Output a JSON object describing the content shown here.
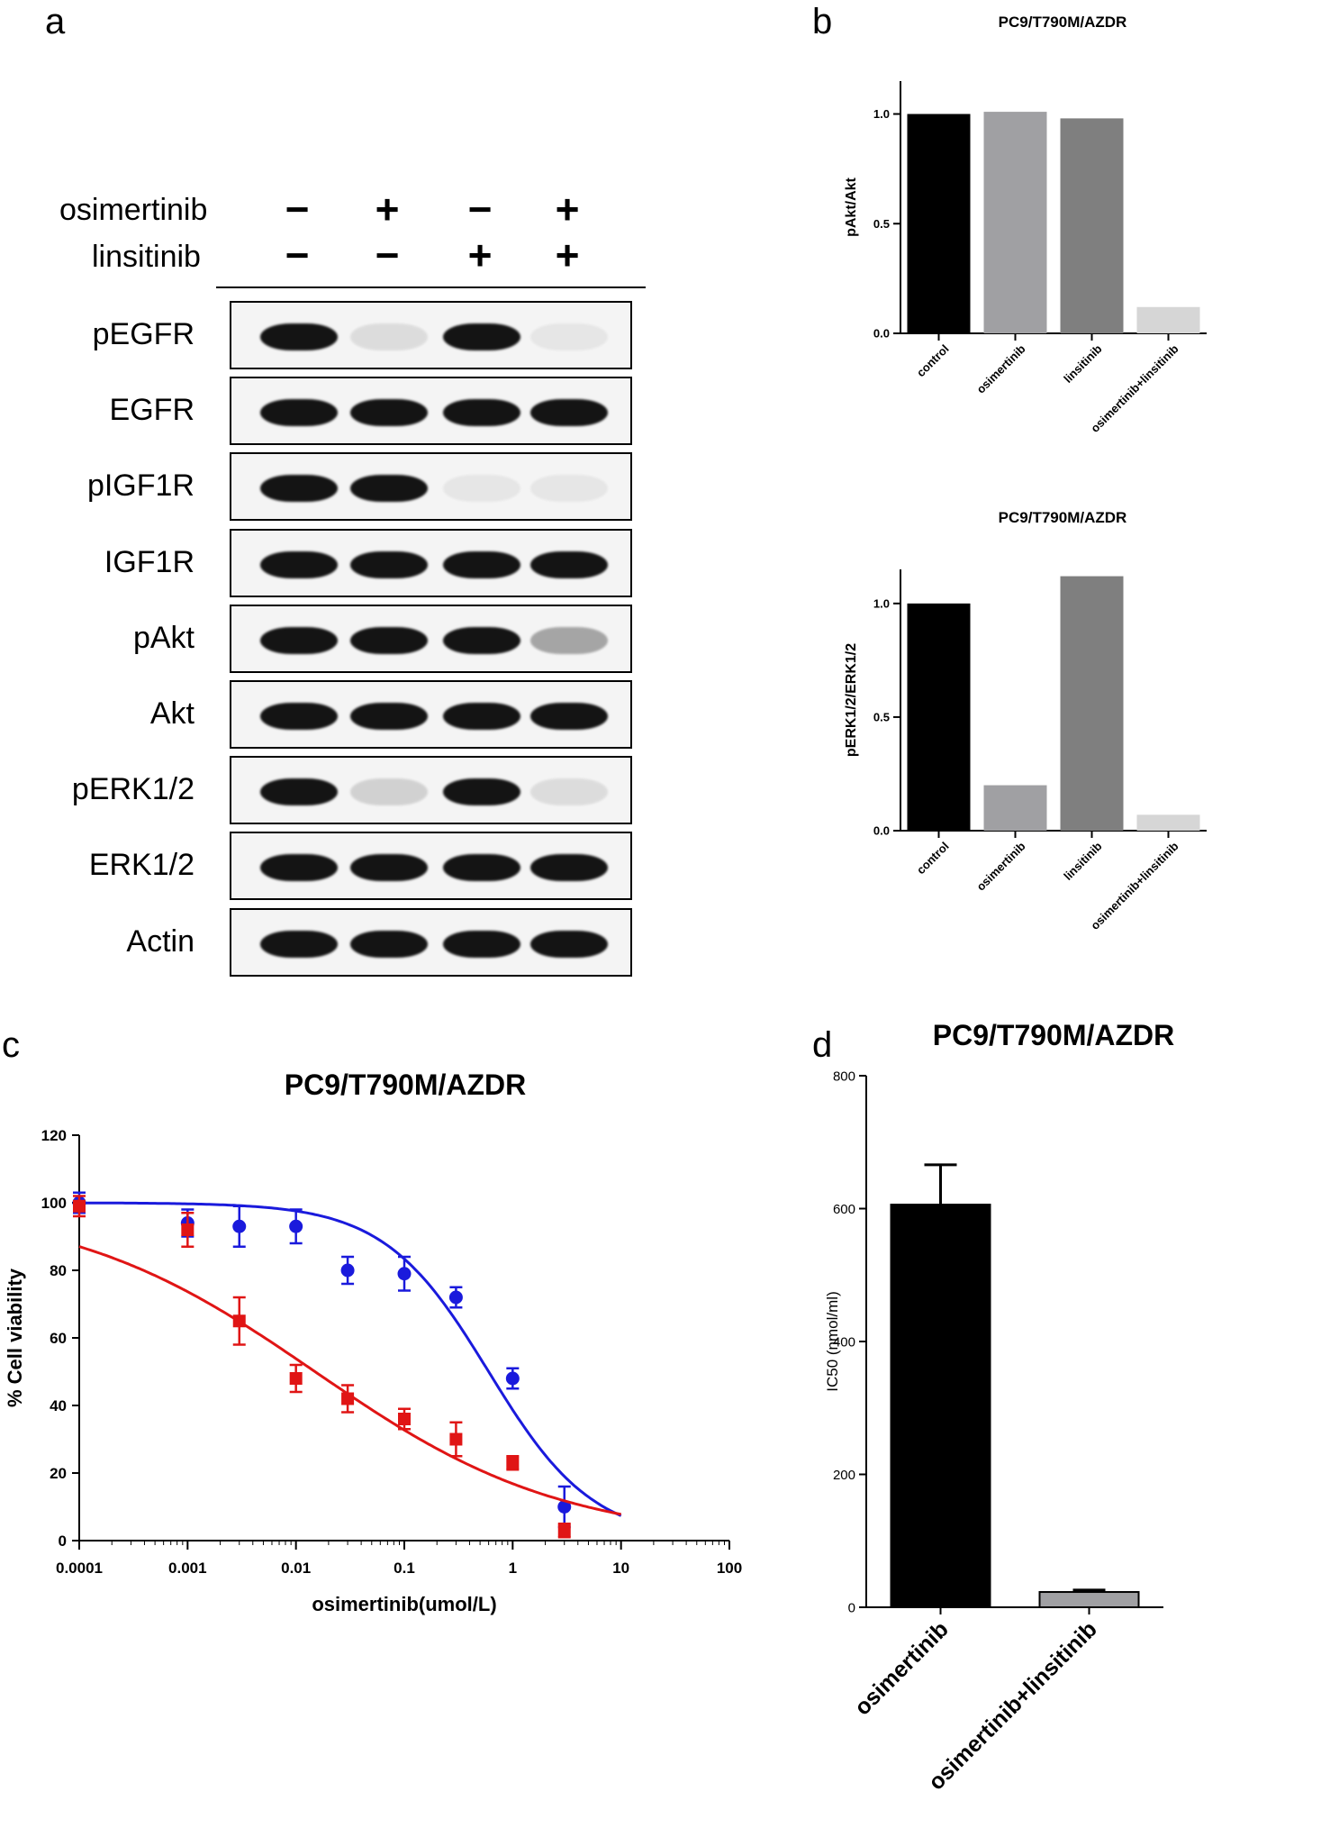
{
  "panels": {
    "a": "a",
    "b": "b",
    "c": "c",
    "d": "d"
  },
  "western_blot": {
    "treatments": [
      {
        "name": "osimertinib",
        "signs": [
          "−",
          "+",
          "−",
          "+"
        ]
      },
      {
        "name": "linsitinib",
        "signs": [
          "−",
          "−",
          "+",
          "+"
        ]
      }
    ],
    "rows": [
      {
        "label": "pEGFR",
        "intensity": [
          1.0,
          0.1,
          1.0,
          0.05
        ]
      },
      {
        "label": "EGFR",
        "intensity": [
          1.0,
          1.0,
          1.0,
          1.0
        ]
      },
      {
        "label": "pIGF1R",
        "intensity": [
          1.0,
          1.0,
          0.05,
          0.05
        ]
      },
      {
        "label": "IGF1R",
        "intensity": [
          1.0,
          1.0,
          1.0,
          1.0
        ]
      },
      {
        "label": "pAkt",
        "intensity": [
          1.0,
          1.0,
          1.0,
          0.35
        ]
      },
      {
        "label": "Akt",
        "intensity": [
          1.0,
          1.0,
          1.0,
          1.0
        ]
      },
      {
        "label": "pERK1/2",
        "intensity": [
          1.0,
          0.15,
          1.0,
          0.1
        ]
      },
      {
        "label": "ERK1/2",
        "intensity": [
          1.0,
          1.0,
          1.0,
          1.0
        ]
      },
      {
        "label": "Actin",
        "intensity": [
          1.0,
          1.0,
          1.0,
          1.0
        ]
      }
    ]
  },
  "chart_data": [
    {
      "type": "bar",
      "title": "PC9/T790M/AZDR",
      "ylabel": "pAkt/Akt",
      "categories": [
        "control",
        "osimertinib",
        "linsitinib",
        "osimertinib+linsitinib"
      ],
      "values": [
        1.0,
        1.01,
        0.98,
        0.12
      ],
      "ylim": [
        0,
        1.15
      ],
      "yticks": [
        "0.0",
        "0.5",
        "1.0"
      ],
      "colors": [
        "#000000",
        "#a0a0a3",
        "#7f7f7f",
        "#d6d6d6"
      ]
    },
    {
      "type": "bar",
      "title": "PC9/T790M/AZDR",
      "ylabel": "pERK1/2/ERK1/2",
      "categories": [
        "control",
        "osimertinib",
        "linsitinib",
        "osimertinib+linsitinib"
      ],
      "values": [
        1.0,
        0.2,
        1.12,
        0.07
      ],
      "ylim": [
        0,
        1.15
      ],
      "yticks": [
        "0.0",
        "0.5",
        "1.0"
      ],
      "colors": [
        "#000000",
        "#a0a0a3",
        "#7f7f7f",
        "#d6d6d6"
      ]
    },
    {
      "type": "scatter",
      "title": "PC9/T790M/AZDR",
      "xlabel": "osimertinib(umol/L)",
      "ylabel": "% Cell viability",
      "xscale": "log",
      "xlim": [
        0.0001,
        100
      ],
      "ylim": [
        0,
        120
      ],
      "xticks": [
        "0.0001",
        "0.001",
        "0.01",
        "0.1",
        "1",
        "10",
        "100"
      ],
      "yticks": [
        "0",
        "20",
        "40",
        "60",
        "80",
        "100",
        "120"
      ],
      "series": [
        {
          "color": "#1a1adc",
          "marker": "circle",
          "x": [
            0.0001,
            0.001,
            0.003,
            0.01,
            0.03,
            0.1,
            0.3,
            1,
            3
          ],
          "y": [
            100,
            94,
            93,
            93,
            80,
            79,
            72,
            48,
            10
          ],
          "err": [
            3,
            4,
            6,
            5,
            4,
            5,
            3,
            3,
            6
          ],
          "fit": {
            "top": 100,
            "bottom": 0,
            "ic50": 0.6,
            "hill": 0.9
          }
        },
        {
          "color": "#e01515",
          "marker": "square",
          "x": [
            0.0001,
            0.001,
            0.003,
            0.01,
            0.03,
            0.1,
            0.3,
            1,
            3
          ],
          "y": [
            99,
            92,
            65,
            48,
            42,
            36,
            30,
            23,
            3
          ],
          "err": [
            3,
            5,
            7,
            4,
            4,
            3,
            5,
            2,
            2
          ],
          "fit": {
            "top": 100,
            "bottom": 0,
            "ic50": 0.015,
            "hill": 0.38
          }
        }
      ]
    },
    {
      "type": "bar",
      "title": "PC9/T790M/AZDR",
      "ylabel": "IC50 (nmol/ml)",
      "categories": [
        "osimertinib",
        "osimertinib+linsitinib"
      ],
      "values": [
        606,
        23
      ],
      "errors": [
        60,
        3
      ],
      "ylim": [
        0,
        800
      ],
      "yticks": [
        "0",
        "200",
        "400",
        "600",
        "800"
      ],
      "colors": [
        "#000000",
        "#a0a0a3"
      ]
    }
  ]
}
